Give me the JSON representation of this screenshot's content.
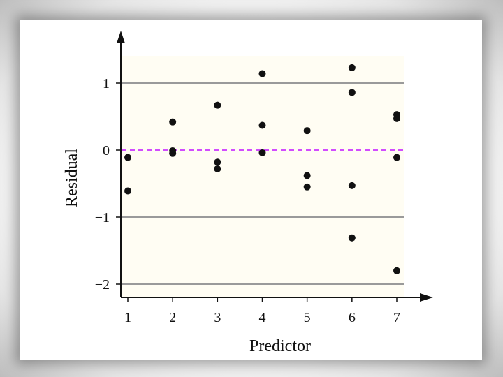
{
  "chart_data": {
    "type": "scatter",
    "xlabel": "Predictor",
    "ylabel": "Residual",
    "x_ticks": [
      "1",
      "2",
      "3",
      "4",
      "5",
      "6",
      "7"
    ],
    "y_ticks": [
      "−2",
      "−1",
      "0",
      "1"
    ],
    "y_tick_values": [
      -2,
      -1,
      0,
      1
    ],
    "x_tick_values": [
      1,
      2,
      3,
      4,
      5,
      6,
      7
    ],
    "xlim": [
      0.8,
      7.6
    ],
    "ylim": [
      -2.2,
      1.4
    ],
    "reference_lines": [
      {
        "y": 1,
        "style": "solid",
        "color": "#9a9a9a"
      },
      {
        "y": -1,
        "style": "solid",
        "color": "#9a9a9a"
      },
      {
        "y": -2,
        "style": "solid",
        "color": "#9a9a9a"
      },
      {
        "y": 0,
        "style": "dashed",
        "color": "#cc33ff"
      }
    ],
    "colors": {
      "plot_background": "#fffdf3",
      "points": "#111111",
      "axes": "#111111"
    },
    "points": [
      {
        "x": 1,
        "y": -0.11
      },
      {
        "x": 1,
        "y": -0.61
      },
      {
        "x": 2,
        "y": 0.42
      },
      {
        "x": 2,
        "y": -0.01
      },
      {
        "x": 2,
        "y": -0.05
      },
      {
        "x": 3,
        "y": 0.67
      },
      {
        "x": 3,
        "y": -0.18
      },
      {
        "x": 3,
        "y": -0.28
      },
      {
        "x": 4,
        "y": 1.14
      },
      {
        "x": 4,
        "y": 0.37
      },
      {
        "x": 4,
        "y": -0.04
      },
      {
        "x": 5,
        "y": 0.29
      },
      {
        "x": 5,
        "y": -0.38
      },
      {
        "x": 5,
        "y": -0.55
      },
      {
        "x": 6,
        "y": 1.23
      },
      {
        "x": 6,
        "y": 0.86
      },
      {
        "x": 6,
        "y": -0.53
      },
      {
        "x": 6,
        "y": -1.31
      },
      {
        "x": 7,
        "y": 0.53
      },
      {
        "x": 7,
        "y": 0.47
      },
      {
        "x": 7,
        "y": -0.11
      },
      {
        "x": 7,
        "y": -1.8
      }
    ]
  }
}
